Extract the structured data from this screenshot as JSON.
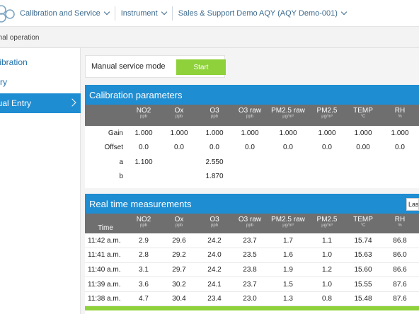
{
  "header": {
    "breadcrumbs": [
      {
        "label": "Calibration and Service"
      },
      {
        "label": "Instrument"
      },
      {
        "label": "Sales & Support Demo AQY (AQY Demo-001)"
      }
    ]
  },
  "status": {
    "text": "ormal operation"
  },
  "sidebar": {
    "items": [
      {
        "label": "alibration",
        "active": false
      },
      {
        "label": "tory",
        "active": false
      },
      {
        "label": "nual Entry",
        "active": true
      }
    ]
  },
  "service": {
    "label": "Manual service mode",
    "start_label": "Start"
  },
  "calibration": {
    "title": "Calibration parameters",
    "columns": [
      {
        "name": "",
        "unit": ""
      },
      {
        "name": "NO2",
        "unit": "ppb"
      },
      {
        "name": "Ox",
        "unit": "ppb"
      },
      {
        "name": "O3",
        "unit": "ppb"
      },
      {
        "name": "O3 raw",
        "unit": "ppb"
      },
      {
        "name": "PM2.5 raw",
        "unit": "µg/m³"
      },
      {
        "name": "PM2.5",
        "unit": "µg/m³"
      },
      {
        "name": "TEMP",
        "unit": "°C"
      },
      {
        "name": "RH",
        "unit": "%"
      }
    ],
    "rows": [
      {
        "label": "Gain",
        "cells": [
          "1.000",
          "1.000",
          "1.000",
          "1.000",
          "1.000",
          "1.000",
          "1.000",
          "1.000"
        ]
      },
      {
        "label": "Offset",
        "cells": [
          "0.0",
          "0.0",
          "0.0",
          "0.0",
          "0.0",
          "0.0",
          "0.00",
          "0.0"
        ]
      },
      {
        "label": "a",
        "cells": [
          "1.100",
          "",
          "2.550",
          "",
          "",
          "",
          "",
          ""
        ]
      },
      {
        "label": "b",
        "cells": [
          "",
          "",
          "1.870",
          "",
          "",
          "",
          "",
          ""
        ]
      }
    ]
  },
  "realtime": {
    "title": "Real time measurements",
    "selector_value": "Las",
    "columns": [
      {
        "name": "Time",
        "unit": ""
      },
      {
        "name": "NO2",
        "unit": "ppb"
      },
      {
        "name": "Ox",
        "unit": "ppb"
      },
      {
        "name": "O3",
        "unit": "ppb"
      },
      {
        "name": "O3 raw",
        "unit": "ppb"
      },
      {
        "name": "PM2.5 raw",
        "unit": "µg/m³"
      },
      {
        "name": "PM2.5",
        "unit": "µg/m³"
      },
      {
        "name": "TEMP",
        "unit": "°C"
      },
      {
        "name": "RH",
        "unit": "%"
      }
    ],
    "rows": [
      {
        "cells": [
          "11:42 a.m.",
          "2.9",
          "29.6",
          "24.2",
          "23.7",
          "1.7",
          "1.1",
          "15.74",
          "86.8"
        ]
      },
      {
        "cells": [
          "11:41 a.m.",
          "2.8",
          "29.2",
          "24.0",
          "23.5",
          "1.6",
          "1.0",
          "15.63",
          "86.0"
        ]
      },
      {
        "cells": [
          "11:40 a.m.",
          "3.1",
          "29.7",
          "24.2",
          "23.8",
          "1.9",
          "1.2",
          "15.60",
          "86.6"
        ]
      },
      {
        "cells": [
          "11:39 a.m.",
          "3.6",
          "30.2",
          "24.1",
          "23.7",
          "1.5",
          "1.0",
          "15.55",
          "87.6"
        ]
      },
      {
        "cells": [
          "11:38 a.m.",
          "4.7",
          "30.4",
          "23.4",
          "23.0",
          "1.3",
          "0.8",
          "15.48",
          "87.6"
        ]
      }
    ]
  },
  "colors": {
    "accent": "#1f8dd2",
    "start_button": "#8ed13a",
    "header_gray": "#6f6f6f"
  }
}
